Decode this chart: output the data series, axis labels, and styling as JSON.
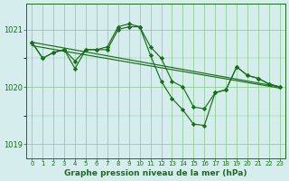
{
  "background_color": "#d5eeed",
  "line_color": "#1a6e1a",
  "grid_color": "#88c888",
  "title": "Graphe pression niveau de la mer (hPa)",
  "xlim": [
    -0.5,
    23.5
  ],
  "ylim": [
    1018.75,
    1021.45
  ],
  "yticks": [
    1019,
    1020,
    1021
  ],
  "xticks": [
    0,
    1,
    2,
    3,
    4,
    5,
    6,
    7,
    8,
    9,
    10,
    11,
    12,
    13,
    14,
    15,
    16,
    17,
    18,
    19,
    20,
    21,
    22,
    23
  ],
  "series": [
    {
      "x": [
        0,
        1,
        2,
        3,
        4,
        5,
        6,
        7,
        8,
        9,
        10,
        11,
        12,
        13,
        14,
        15,
        16,
        17,
        18,
        19,
        20,
        21,
        22,
        23
      ],
      "y": [
        1020.78,
        1020.5,
        1020.6,
        1020.65,
        1020.45,
        1020.65,
        1020.65,
        1020.7,
        1021.05,
        1021.1,
        1021.05,
        1020.7,
        1020.5,
        1020.1,
        1020.0,
        1019.65,
        1019.62,
        1019.9,
        1019.95,
        1020.35,
        1020.2,
        1020.15,
        1020.05,
        1020.0
      ]
    },
    {
      "x": [
        0,
        1,
        2,
        3,
        4,
        5,
        6,
        7,
        8,
        9,
        10,
        11,
        12,
        13,
        14,
        15,
        16,
        17,
        18,
        19,
        20,
        21,
        22,
        23
      ],
      "y": [
        1020.78,
        1020.5,
        1020.6,
        1020.65,
        1020.32,
        1020.65,
        1020.65,
        1020.65,
        1021.0,
        1021.05,
        1021.05,
        1020.55,
        1020.1,
        1019.8,
        1019.6,
        1019.35,
        1019.33,
        1019.9,
        1019.95,
        1020.35,
        1020.2,
        1020.15,
        1020.05,
        1020.0
      ]
    },
    {
      "x": [
        0,
        23
      ],
      "y": [
        1020.78,
        1020.0
      ]
    },
    {
      "x": [
        0,
        23
      ],
      "y": [
        1020.72,
        1019.98
      ]
    }
  ]
}
